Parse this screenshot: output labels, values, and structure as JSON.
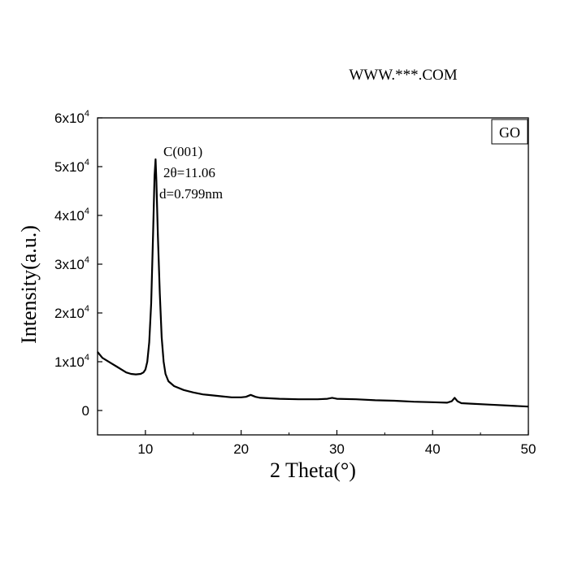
{
  "watermark": "WWW.***.COM",
  "chart_data": {
    "type": "line",
    "xlabel": "2 Theta(°)",
    "ylabel": "Intensity(a.u.)",
    "xlim": [
      5,
      50
    ],
    "ylim": [
      -5000,
      60000
    ],
    "x_ticks": [
      10,
      20,
      30,
      40,
      50
    ],
    "x_tick_labels": [
      "10",
      "20",
      "30",
      "40",
      "50"
    ],
    "y_ticks": [
      0,
      10000,
      20000,
      30000,
      40000,
      50000,
      60000
    ],
    "y_tick_labels": [
      {
        "mantissa": "0",
        "exp": ""
      },
      {
        "mantissa": "1x10",
        "exp": "4"
      },
      {
        "mantissa": "2x10",
        "exp": "4"
      },
      {
        "mantissa": "3x10",
        "exp": "4"
      },
      {
        "mantissa": "4x10",
        "exp": "4"
      },
      {
        "mantissa": "5x10",
        "exp": "4"
      },
      {
        "mantissa": "6x10",
        "exp": "4"
      }
    ],
    "legend": "GO",
    "legend_position": "top-right",
    "grid": false,
    "annotations": [
      "C(001)",
      "2θ=11.06",
      "d=0.799nm"
    ],
    "series": [
      {
        "color": "#000000",
        "points": [
          [
            5.0,
            12000
          ],
          [
            5.5,
            10800
          ],
          [
            6.0,
            10200
          ],
          [
            6.5,
            9600
          ],
          [
            7.0,
            9000
          ],
          [
            7.5,
            8400
          ],
          [
            8.0,
            7800
          ],
          [
            8.5,
            7500
          ],
          [
            9.0,
            7400
          ],
          [
            9.5,
            7500
          ],
          [
            9.8,
            7800
          ],
          [
            10.0,
            8400
          ],
          [
            10.2,
            10000
          ],
          [
            10.4,
            14000
          ],
          [
            10.6,
            22000
          ],
          [
            10.8,
            36000
          ],
          [
            10.95,
            48000
          ],
          [
            11.06,
            51500
          ],
          [
            11.15,
            47000
          ],
          [
            11.3,
            36000
          ],
          [
            11.5,
            24000
          ],
          [
            11.7,
            15000
          ],
          [
            11.9,
            10000
          ],
          [
            12.1,
            7500
          ],
          [
            12.4,
            6000
          ],
          [
            13.0,
            5000
          ],
          [
            14.0,
            4200
          ],
          [
            15.0,
            3700
          ],
          [
            16.0,
            3300
          ],
          [
            17.0,
            3100
          ],
          [
            18.0,
            2900
          ],
          [
            19.0,
            2700
          ],
          [
            20.0,
            2700
          ],
          [
            20.5,
            2800
          ],
          [
            21.0,
            3200
          ],
          [
            21.5,
            2800
          ],
          [
            22.0,
            2600
          ],
          [
            24.0,
            2400
          ],
          [
            26.0,
            2300
          ],
          [
            28.0,
            2300
          ],
          [
            29.0,
            2400
          ],
          [
            29.5,
            2600
          ],
          [
            30.0,
            2400
          ],
          [
            32.0,
            2300
          ],
          [
            34.0,
            2100
          ],
          [
            36.0,
            2000
          ],
          [
            38.0,
            1800
          ],
          [
            40.0,
            1700
          ],
          [
            41.5,
            1600
          ],
          [
            42.0,
            1900
          ],
          [
            42.3,
            2600
          ],
          [
            42.6,
            1900
          ],
          [
            43.0,
            1500
          ],
          [
            44.0,
            1400
          ],
          [
            46.0,
            1200
          ],
          [
            48.0,
            1000
          ],
          [
            50.0,
            800
          ]
        ]
      }
    ]
  }
}
